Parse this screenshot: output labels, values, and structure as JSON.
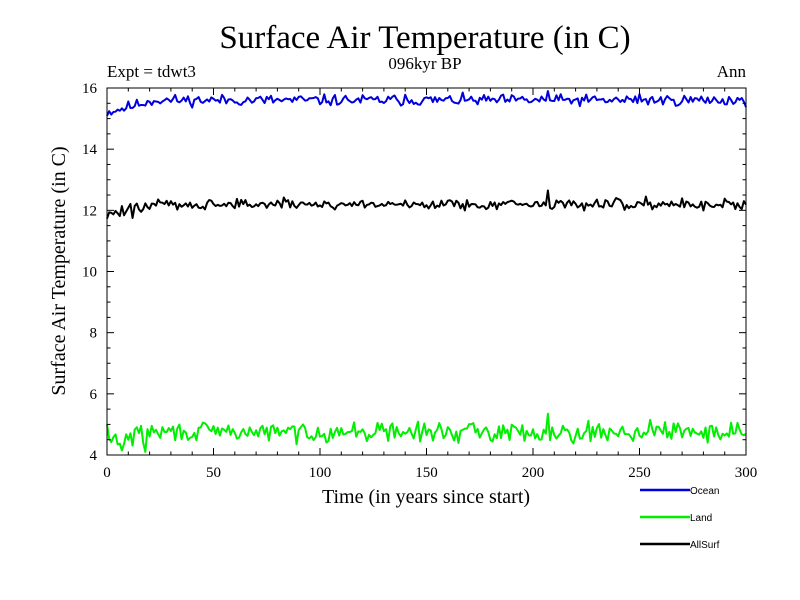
{
  "chart_data": {
    "type": "line",
    "title": "Surface Air Temperature (in C)",
    "subtitle": "096kyr BP",
    "expt_label": "Expt = tdwt3",
    "period_label": "Ann",
    "xlabel": "Time (in years since start)",
    "ylabel": "Surface Air Temperature (in C)",
    "xlim": [
      0,
      300
    ],
    "ylim": [
      4,
      16
    ],
    "xticks": [
      0,
      50,
      100,
      150,
      200,
      250,
      300
    ],
    "yticks": [
      4,
      6,
      8,
      10,
      12,
      14,
      16
    ],
    "x_minor_step": 10,
    "y_minor_step": 0.5,
    "grid": false,
    "legend_position": "bottom-right",
    "series": [
      {
        "name": "Ocean",
        "color": "#0000dd",
        "base": 15.6,
        "start_base": 15.2,
        "noise": 0.11,
        "seed": 11,
        "peaks": [
          [
            207,
            15.9
          ],
          [
            140,
            15.78
          ],
          [
            250,
            15.8
          ]
        ]
      },
      {
        "name": "Land",
        "color": "#00ee00",
        "base": 4.75,
        "start_base": 4.45,
        "noise": 0.19,
        "seed": 29,
        "peaks": [
          [
            0,
            5.0
          ],
          [
            7,
            4.15
          ],
          [
            18,
            4.1
          ],
          [
            207,
            5.35
          ],
          [
            127,
            5.05
          ],
          [
            255,
            5.15
          ],
          [
            296,
            5.05
          ]
        ]
      },
      {
        "name": "AllSurf",
        "color": "#000000",
        "base": 12.2,
        "start_base": 11.85,
        "noise": 0.11,
        "seed": 47,
        "peaks": [
          [
            207,
            12.65
          ],
          [
            12,
            11.75
          ],
          [
            253,
            12.45
          ]
        ]
      }
    ]
  }
}
